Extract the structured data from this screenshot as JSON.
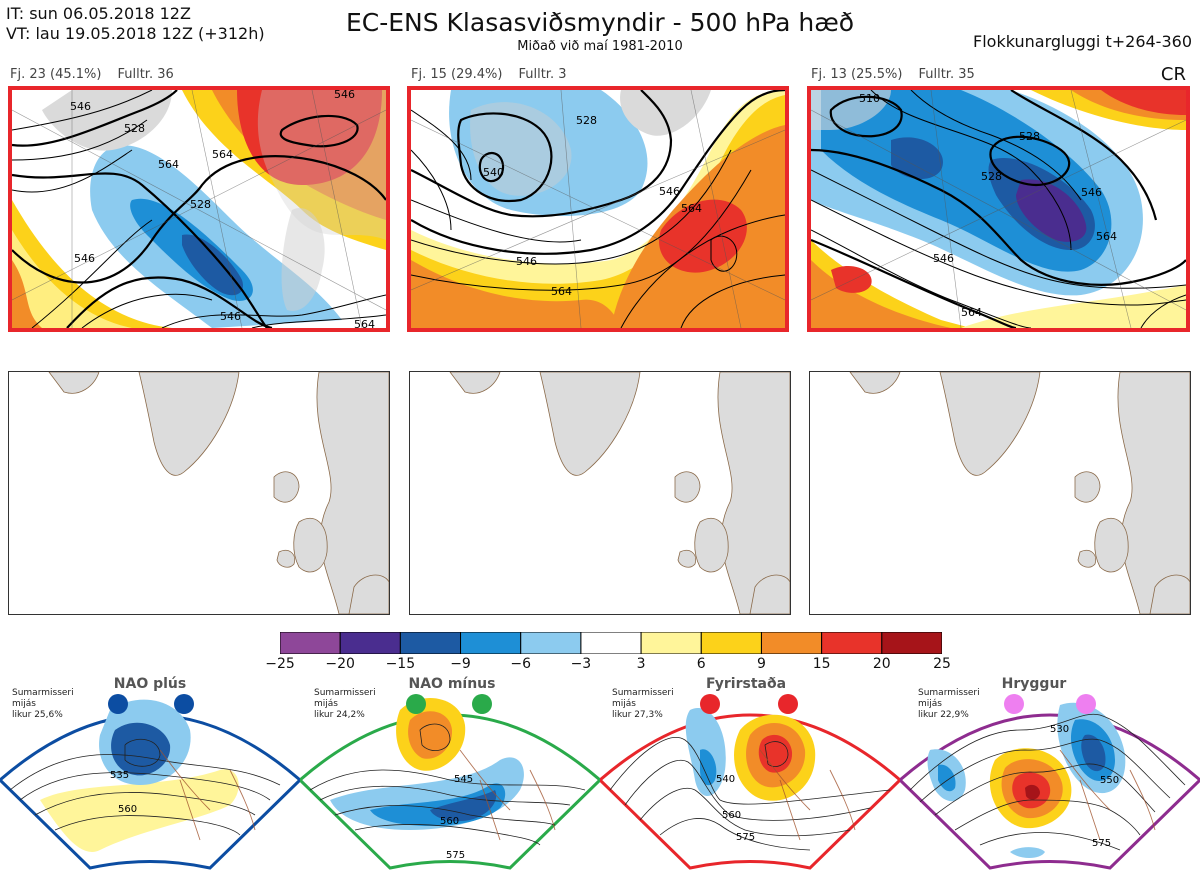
{
  "header": {
    "it_line": "IT: sun 06.05.2018 12Z",
    "vt_line": "VT: lau 19.05.2018 12Z  (+312h)",
    "title": "EC-ENS Klasasviðsmyndir - 500 hPa hæð",
    "subtitle": "Miðað við maí 1981-2010",
    "window": "Flokkunargluggi t+264-360",
    "cr": "CR"
  },
  "clusters": [
    {
      "count": "Fj. 23 (45.1%)",
      "rep": "Fulltr. 36",
      "labels": [
        "546",
        "528",
        "546",
        "564",
        "528",
        "564",
        "546",
        "546",
        "564"
      ]
    },
    {
      "count": "Fj. 15 (29.4%)",
      "rep": "Fulltr. 3",
      "labels": [
        "528",
        "546",
        "546",
        "564",
        "564",
        "540"
      ]
    },
    {
      "count": "Fj. 13 (25.5%)",
      "rep": "Fulltr. 35",
      "labels": [
        "510",
        "528",
        "528",
        "546",
        "546",
        "564",
        "564"
      ]
    }
  ],
  "colorbar": {
    "ticks": [
      "−25",
      "−20",
      "−15",
      "−9",
      "−6",
      "−3",
      "3",
      "6",
      "9",
      "15",
      "20",
      "25"
    ],
    "colors": [
      "#8e4799",
      "#4a2d8f",
      "#1d5aa3",
      "#1e8fd6",
      "#8ccbef",
      "#ffffff",
      "#fff59a",
      "#fcd21a",
      "#f28c28",
      "#e8332a",
      "#a61419"
    ]
  },
  "regimes": [
    {
      "title": "NAO plús",
      "note": [
        "Sumarmisseri",
        "mijás",
        "likur 25,6%"
      ],
      "color": "#0c4da2",
      "labels": [
        "535",
        "560"
      ]
    },
    {
      "title": "NAO mínus",
      "note": [
        "Sumarmisseri",
        "mijás",
        "likur 24,2%"
      ],
      "color": "#2aaa4a",
      "labels": [
        "545",
        "560",
        "575"
      ]
    },
    {
      "title": "Fyrirstaða",
      "note": [
        "Sumarmisseri",
        "mijás",
        "likur 27,3%"
      ],
      "color": "#e8262b",
      "labels": [
        "540",
        "560",
        "575"
      ]
    },
    {
      "title": "Hryggur",
      "note": [
        "Sumarmisseri",
        "mijás",
        "likur 22,9%"
      ],
      "color": "#8e2c8f",
      "dot_color": "#ee7ff0",
      "labels": [
        "530",
        "550",
        "575"
      ]
    }
  ]
}
